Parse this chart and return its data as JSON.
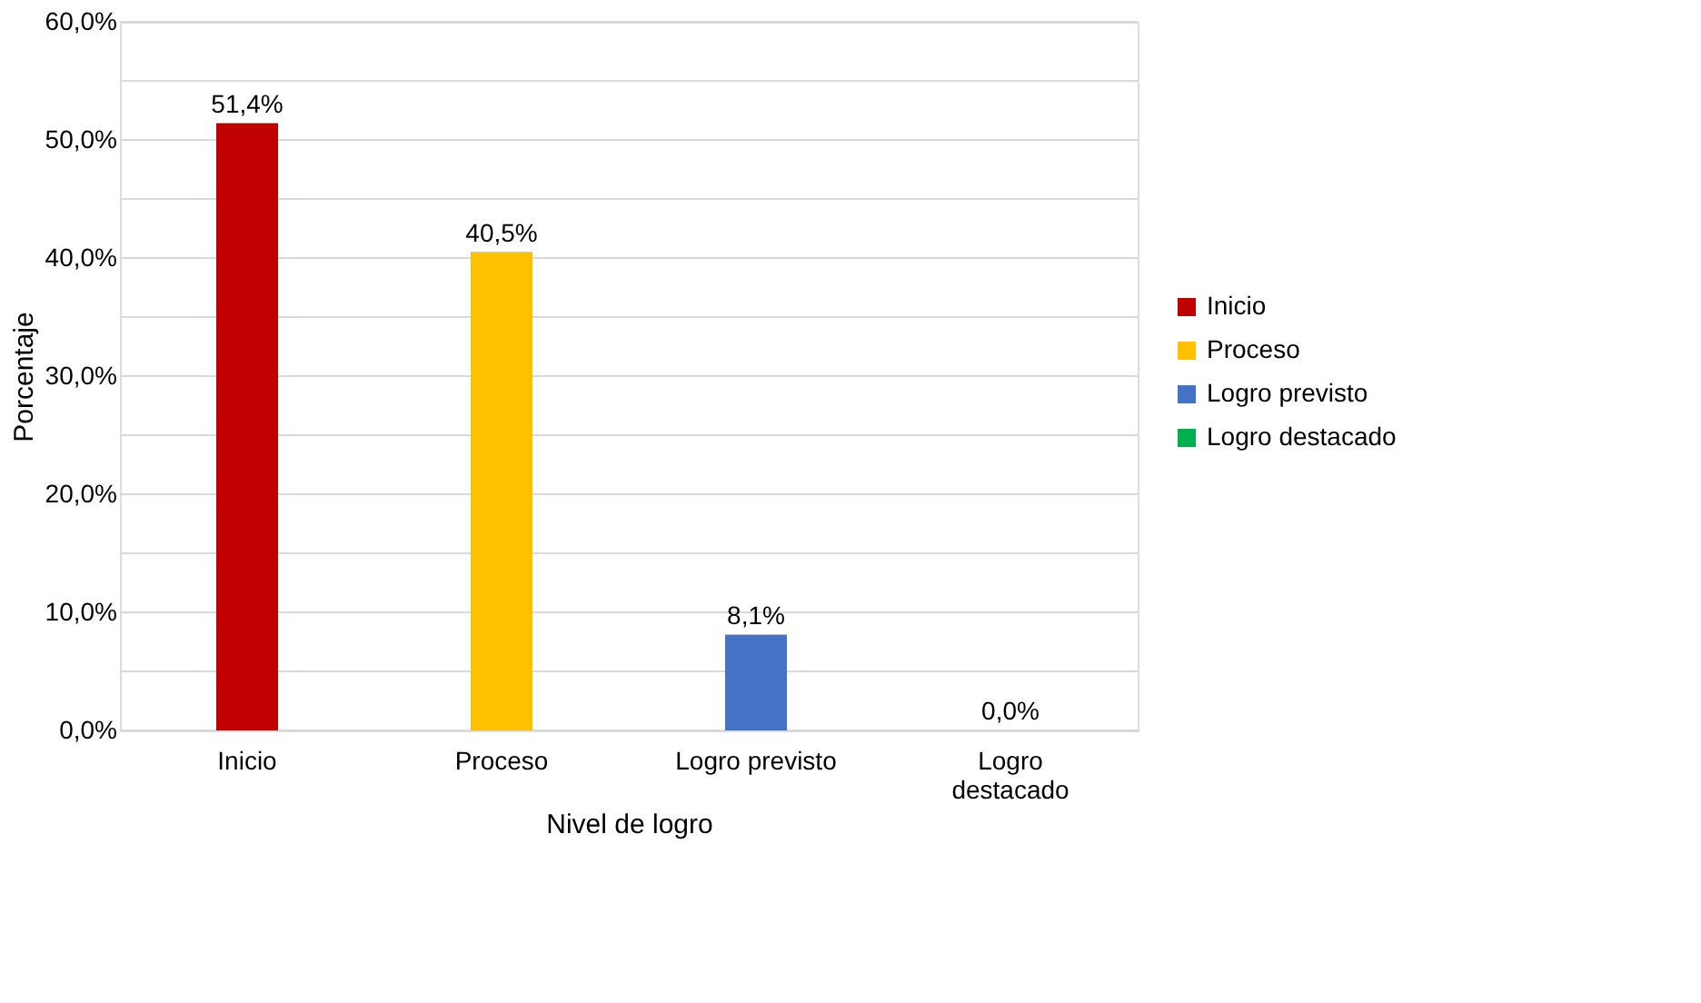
{
  "chart_data": {
    "type": "bar",
    "xlabel": "Nivel de logro",
    "ylabel": "Porcentaje",
    "categories": [
      "Inicio",
      "Proceso",
      "Logro previsto",
      "Logro destacado"
    ],
    "series": [
      {
        "name": "Inicio",
        "color": "#c00000",
        "values": [
          51.4,
          null,
          null,
          null
        ],
        "value_labels": [
          "51,4%",
          null,
          null,
          null
        ]
      },
      {
        "name": "Proceso",
        "color": "#ffc000",
        "values": [
          null,
          40.5,
          null,
          null
        ],
        "value_labels": [
          null,
          "40,5%",
          null,
          null
        ]
      },
      {
        "name": "Logro previsto",
        "color": "#4472c4",
        "values": [
          null,
          null,
          8.1,
          null
        ],
        "value_labels": [
          null,
          null,
          "8,1%",
          null
        ]
      },
      {
        "name": "Logro destacado",
        "color": "#00b050",
        "values": [
          null,
          null,
          null,
          0.0
        ],
        "value_labels": [
          null,
          null,
          null,
          "0,0%"
        ]
      }
    ],
    "ylim": [
      0,
      60
    ],
    "yticks": [
      {
        "value": 0,
        "label": "0,0%"
      },
      {
        "value": 5,
        "label": null
      },
      {
        "value": 10,
        "label": "10,0%"
      },
      {
        "value": 15,
        "label": null
      },
      {
        "value": 20,
        "label": "20,0%"
      },
      {
        "value": 25,
        "label": null
      },
      {
        "value": 30,
        "label": "30,0%"
      },
      {
        "value": 35,
        "label": null
      },
      {
        "value": 40,
        "label": "40,0%"
      },
      {
        "value": 45,
        "label": null
      },
      {
        "value": 50,
        "label": "50,0%"
      },
      {
        "value": 55,
        "label": null
      },
      {
        "value": 60,
        "label": "60,0%"
      }
    ],
    "grid": "y",
    "legend": "right"
  }
}
